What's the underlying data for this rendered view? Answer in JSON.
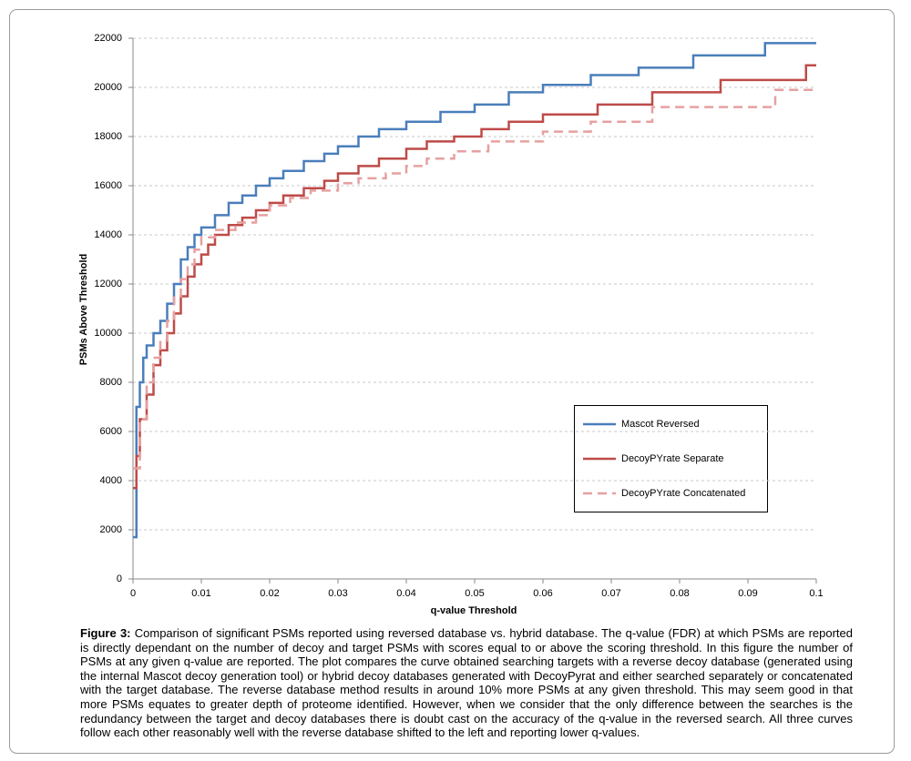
{
  "chart_data": {
    "type": "line",
    "drawstyle": "steps-post",
    "xlabel": "q-value Threshold",
    "ylabel": "PSMs Above Threshold",
    "xlim": [
      0,
      0.1
    ],
    "xticks": [
      0,
      0.01,
      0.02,
      0.03,
      0.04,
      0.05,
      0.06,
      0.07,
      0.08,
      0.09,
      0.1
    ],
    "ylim": [
      0,
      22000
    ],
    "yticks": [
      0,
      2000,
      4000,
      6000,
      8000,
      10000,
      12000,
      14000,
      16000,
      18000,
      20000,
      22000
    ],
    "grid": true,
    "legend": "lower right",
    "series": [
      {
        "name": "Mascot Reversed",
        "color": "#4a7ebb",
        "line_style": "solid",
        "x": [
          0,
          0.0005,
          0.001,
          0.0015,
          0.002,
          0.003,
          0.004,
          0.005,
          0.006,
          0.007,
          0.008,
          0.009,
          0.01,
          0.012,
          0.014,
          0.016,
          0.018,
          0.02,
          0.022,
          0.025,
          0.028,
          0.03,
          0.033,
          0.036,
          0.04,
          0.045,
          0.05,
          0.055,
          0.06,
          0.067,
          0.074,
          0.082,
          0.0925,
          0.1
        ],
        "values": [
          1700,
          7000,
          8000,
          9000,
          9500,
          10000,
          10500,
          11200,
          12000,
          13000,
          13500,
          14000,
          14300,
          14800,
          15300,
          15600,
          16000,
          16300,
          16600,
          17000,
          17300,
          17600,
          18000,
          18300,
          18600,
          19000,
          19300,
          19800,
          20100,
          20500,
          20800,
          21300,
          21800,
          21800
        ]
      },
      {
        "name": "DecoyPYrate Separate",
        "color": "#be4b48",
        "line_style": "solid",
        "x": [
          0,
          0.0005,
          0.001,
          0.002,
          0.003,
          0.004,
          0.005,
          0.006,
          0.007,
          0.008,
          0.009,
          0.01,
          0.011,
          0.012,
          0.014,
          0.016,
          0.018,
          0.02,
          0.022,
          0.025,
          0.028,
          0.03,
          0.033,
          0.036,
          0.04,
          0.043,
          0.047,
          0.051,
          0.055,
          0.06,
          0.068,
          0.076,
          0.086,
          0.0985,
          0.1
        ],
        "values": [
          3700,
          5000,
          6500,
          7500,
          8700,
          9300,
          10000,
          10800,
          11500,
          12300,
          12800,
          13200,
          13600,
          14000,
          14400,
          14700,
          15000,
          15300,
          15600,
          15900,
          16200,
          16500,
          16800,
          17100,
          17500,
          17800,
          18000,
          18300,
          18600,
          18900,
          19300,
          19800,
          20300,
          20900,
          20900
        ]
      },
      {
        "name": "DecoyPYrate Concatenated",
        "color": "#e6a0a0",
        "line_style": "dashed",
        "x": [
          0,
          0.001,
          0.002,
          0.003,
          0.004,
          0.005,
          0.006,
          0.007,
          0.008,
          0.009,
          0.01,
          0.012,
          0.015,
          0.018,
          0.02,
          0.023,
          0.026,
          0.03,
          0.033,
          0.037,
          0.04,
          0.043,
          0.047,
          0.052,
          0.06,
          0.067,
          0.076,
          0.094,
          0.1
        ],
        "values": [
          4500,
          6500,
          8000,
          9000,
          9700,
          10500,
          11500,
          12200,
          12800,
          13400,
          13900,
          14200,
          14500,
          14800,
          15200,
          15500,
          15800,
          16100,
          16300,
          16500,
          16800,
          17100,
          17400,
          17800,
          18200,
          18600,
          19200,
          19900,
          19900
        ]
      }
    ],
    "caption": {
      "label": "Figure 3:",
      "text": "Comparison of significant PSMs reported using reversed database vs. hybrid database. The q-value (FDR) at which PSMs are reported is directly dependant on the number of decoy and target PSMs with scores equal to or above the scoring threshold. In this figure the number of PSMs at any given q-value are reported. The plot compares the curve obtained searching targets with a reverse decoy database (generated using the internal Mascot decoy generation tool) or hybrid decoy databases generated with DecoyPyrat and either searched separately or concatenated with the target database. The reverse database method results in around 10% more PSMs at any given threshold. This may seem good in that more PSMs equates to greater depth of proteome identified. However, when we consider that the only difference between the searches is the redundancy between the target and decoy databases there is doubt cast on the accuracy of the q-value in the reversed search. All three curves follow each other reasonably well with the reverse database shifted to the left and reporting lower q-values."
    }
  }
}
